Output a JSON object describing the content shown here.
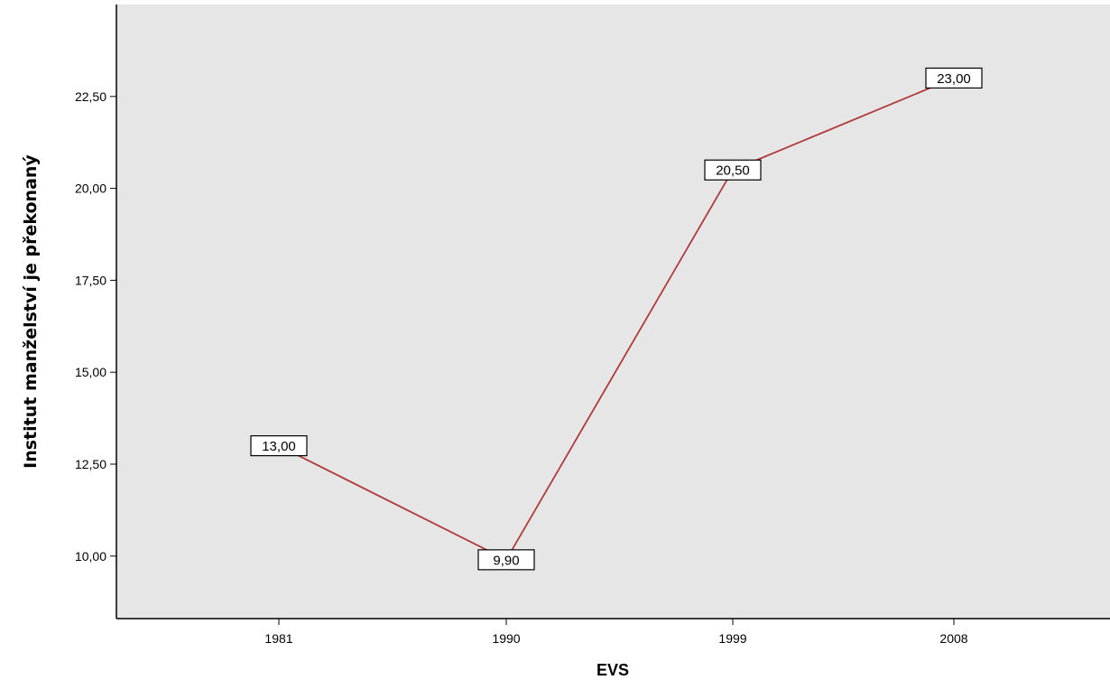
{
  "chart_data": {
    "type": "line",
    "title": "",
    "xlabel": "EVS",
    "ylabel": "Institut manželství je překonaný",
    "categories": [
      "1981",
      "1990",
      "1999",
      "2008"
    ],
    "series": [
      {
        "values": [
          13.0,
          9.9,
          20.5,
          23.0
        ],
        "data_labels": [
          "13,00",
          "9,90",
          "20,50",
          "23,00"
        ]
      }
    ],
    "y_ticks": [
      10.0,
      12.5,
      15.0,
      17.5,
      20.0,
      22.5
    ],
    "y_tick_labels": [
      "10,00",
      "12,50",
      "15,00",
      "17,50",
      "20,00",
      "22,50"
    ],
    "ylim": [
      8.3,
      25.0
    ],
    "grid": false,
    "legend": "none",
    "colors": {
      "plot_background": "#e6e6e6",
      "line": "#b03a3a",
      "axis": "#000000",
      "label_box_fill": "#ffffff",
      "label_box_stroke": "#000000"
    }
  }
}
